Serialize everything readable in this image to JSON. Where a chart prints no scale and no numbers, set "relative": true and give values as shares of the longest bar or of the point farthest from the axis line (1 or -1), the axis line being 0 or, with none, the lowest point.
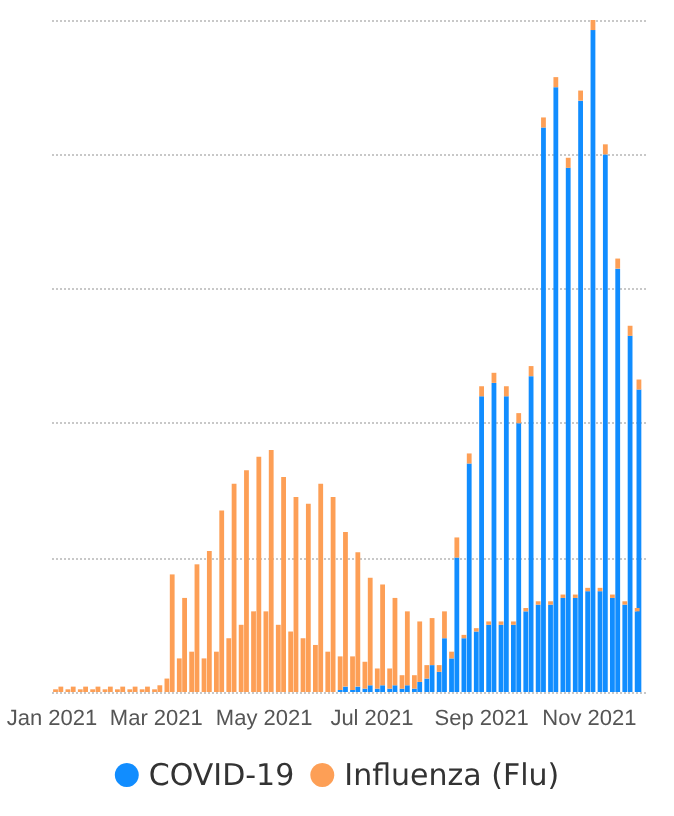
{
  "chart_data": {
    "type": "bar",
    "stacked": true,
    "relative": true,
    "grid": "y",
    "legend": "bottom",
    "tick_labels": "x",
    "x": [
      "2021-01-03",
      "2021-01-06",
      "2021-01-10",
      "2021-01-13",
      "2021-01-17",
      "2021-01-20",
      "2021-01-24",
      "2021-01-27",
      "2021-01-31",
      "2021-02-03",
      "2021-02-07",
      "2021-02-10",
      "2021-02-14",
      "2021-02-17",
      "2021-02-21",
      "2021-02-24",
      "2021-02-28",
      "2021-03-03",
      "2021-03-07",
      "2021-03-10",
      "2021-03-14",
      "2021-03-17",
      "2021-03-21",
      "2021-03-24",
      "2021-03-28",
      "2021-03-31",
      "2021-04-04",
      "2021-04-07",
      "2021-04-11",
      "2021-04-14",
      "2021-04-18",
      "2021-04-21",
      "2021-04-25",
      "2021-04-28",
      "2021-05-02",
      "2021-05-05",
      "2021-05-09",
      "2021-05-12",
      "2021-05-16",
      "2021-05-19",
      "2021-05-23",
      "2021-05-26",
      "2021-05-30",
      "2021-06-02",
      "2021-06-06",
      "2021-06-09",
      "2021-06-13",
      "2021-06-16",
      "2021-06-20",
      "2021-06-23",
      "2021-06-27",
      "2021-06-30",
      "2021-07-04",
      "2021-07-07",
      "2021-07-11",
      "2021-07-14",
      "2021-07-18",
      "2021-07-21",
      "2021-07-25",
      "2021-07-28",
      "2021-08-01",
      "2021-08-04",
      "2021-08-08",
      "2021-08-11",
      "2021-08-15",
      "2021-08-18",
      "2021-08-22",
      "2021-08-25",
      "2021-08-29",
      "2021-09-01",
      "2021-09-05",
      "2021-09-08",
      "2021-09-12",
      "2021-09-15",
      "2021-09-19",
      "2021-09-22",
      "2021-09-26",
      "2021-09-29",
      "2021-10-03",
      "2021-10-06",
      "2021-10-10",
      "2021-10-13",
      "2021-10-17",
      "2021-10-20",
      "2021-10-24",
      "2021-10-27",
      "2021-10-31",
      "2021-11-03",
      "2021-11-07",
      "2021-11-10",
      "2021-11-14",
      "2021-11-17",
      "2021-11-21",
      "2021-11-24",
      "2021-11-28",
      "2021-11-29"
    ],
    "xlim": [
      "2021-01-01",
      "2021-12-03"
    ],
    "xticks": [
      {
        "value": "2021-01-01",
        "label": "Jan 2021"
      },
      {
        "value": "2021-03-01",
        "label": "Mar 2021"
      },
      {
        "value": "2021-05-01",
        "label": "May 2021"
      },
      {
        "value": "2021-07-01",
        "label": "Jul 2021"
      },
      {
        "value": "2021-09-01",
        "label": "Sep 2021"
      },
      {
        "value": "2021-11-01",
        "label": "Nov 2021"
      }
    ],
    "series": [
      {
        "name": "COVID-19",
        "color": "#118dff",
        "values": [
          null,
          null,
          null,
          null,
          null,
          null,
          null,
          null,
          null,
          null,
          null,
          null,
          null,
          null,
          null,
          null,
          null,
          null,
          null,
          null,
          null,
          null,
          null,
          null,
          null,
          null,
          null,
          null,
          null,
          null,
          null,
          null,
          null,
          null,
          null,
          null,
          null,
          null,
          null,
          null,
          null,
          null,
          null,
          null,
          null,
          null,
          0.003,
          0.008,
          0.003,
          0.008,
          0.005,
          0.01,
          0.005,
          0.01,
          0.005,
          0.01,
          0.005,
          0.01,
          0.005,
          0.015,
          0.02,
          0.04,
          0.03,
          0.08,
          0.05,
          0.2,
          0.08,
          0.34,
          0.09,
          0.44,
          0.1,
          0.46,
          0.1,
          0.44,
          0.1,
          0.4,
          0.12,
          0.47,
          0.13,
          0.84,
          0.13,
          0.9,
          0.14,
          0.78,
          0.14,
          0.88,
          0.15,
          0.985,
          0.15,
          0.8,
          0.14,
          0.63,
          0.13,
          0.53,
          0.12,
          0.45
        ]
      },
      {
        "name": "Influenza (Flu)",
        "color": "#fd9f56",
        "values": [
          0.004,
          0.008,
          0.004,
          0.008,
          0.004,
          0.008,
          0.004,
          0.008,
          0.004,
          0.008,
          0.004,
          0.008,
          0.004,
          0.008,
          0.004,
          0.008,
          0.004,
          0.01,
          0.02,
          0.175,
          0.05,
          0.14,
          0.06,
          0.19,
          0.05,
          0.21,
          0.06,
          0.27,
          0.08,
          0.31,
          0.1,
          0.33,
          0.12,
          0.35,
          0.12,
          0.36,
          0.1,
          0.32,
          0.09,
          0.29,
          0.08,
          0.28,
          0.07,
          0.31,
          0.06,
          0.29,
          0.05,
          0.23,
          0.05,
          0.2,
          0.04,
          0.16,
          0.03,
          0.15,
          0.03,
          0.13,
          0.02,
          0.11,
          0.02,
          0.09,
          0.02,
          0.07,
          0.01,
          0.04,
          0.01,
          0.03,
          0.005,
          0.015,
          0.005,
          0.015,
          0.005,
          0.015,
          0.005,
          0.015,
          0.005,
          0.015,
          0.005,
          0.015,
          0.005,
          0.015,
          0.005,
          0.015,
          0.005,
          0.015,
          0.005,
          0.015,
          0.005,
          0.015,
          0.005,
          0.015,
          0.005,
          0.015,
          0.005,
          0.015,
          0.005,
          0.015
        ]
      }
    ]
  }
}
